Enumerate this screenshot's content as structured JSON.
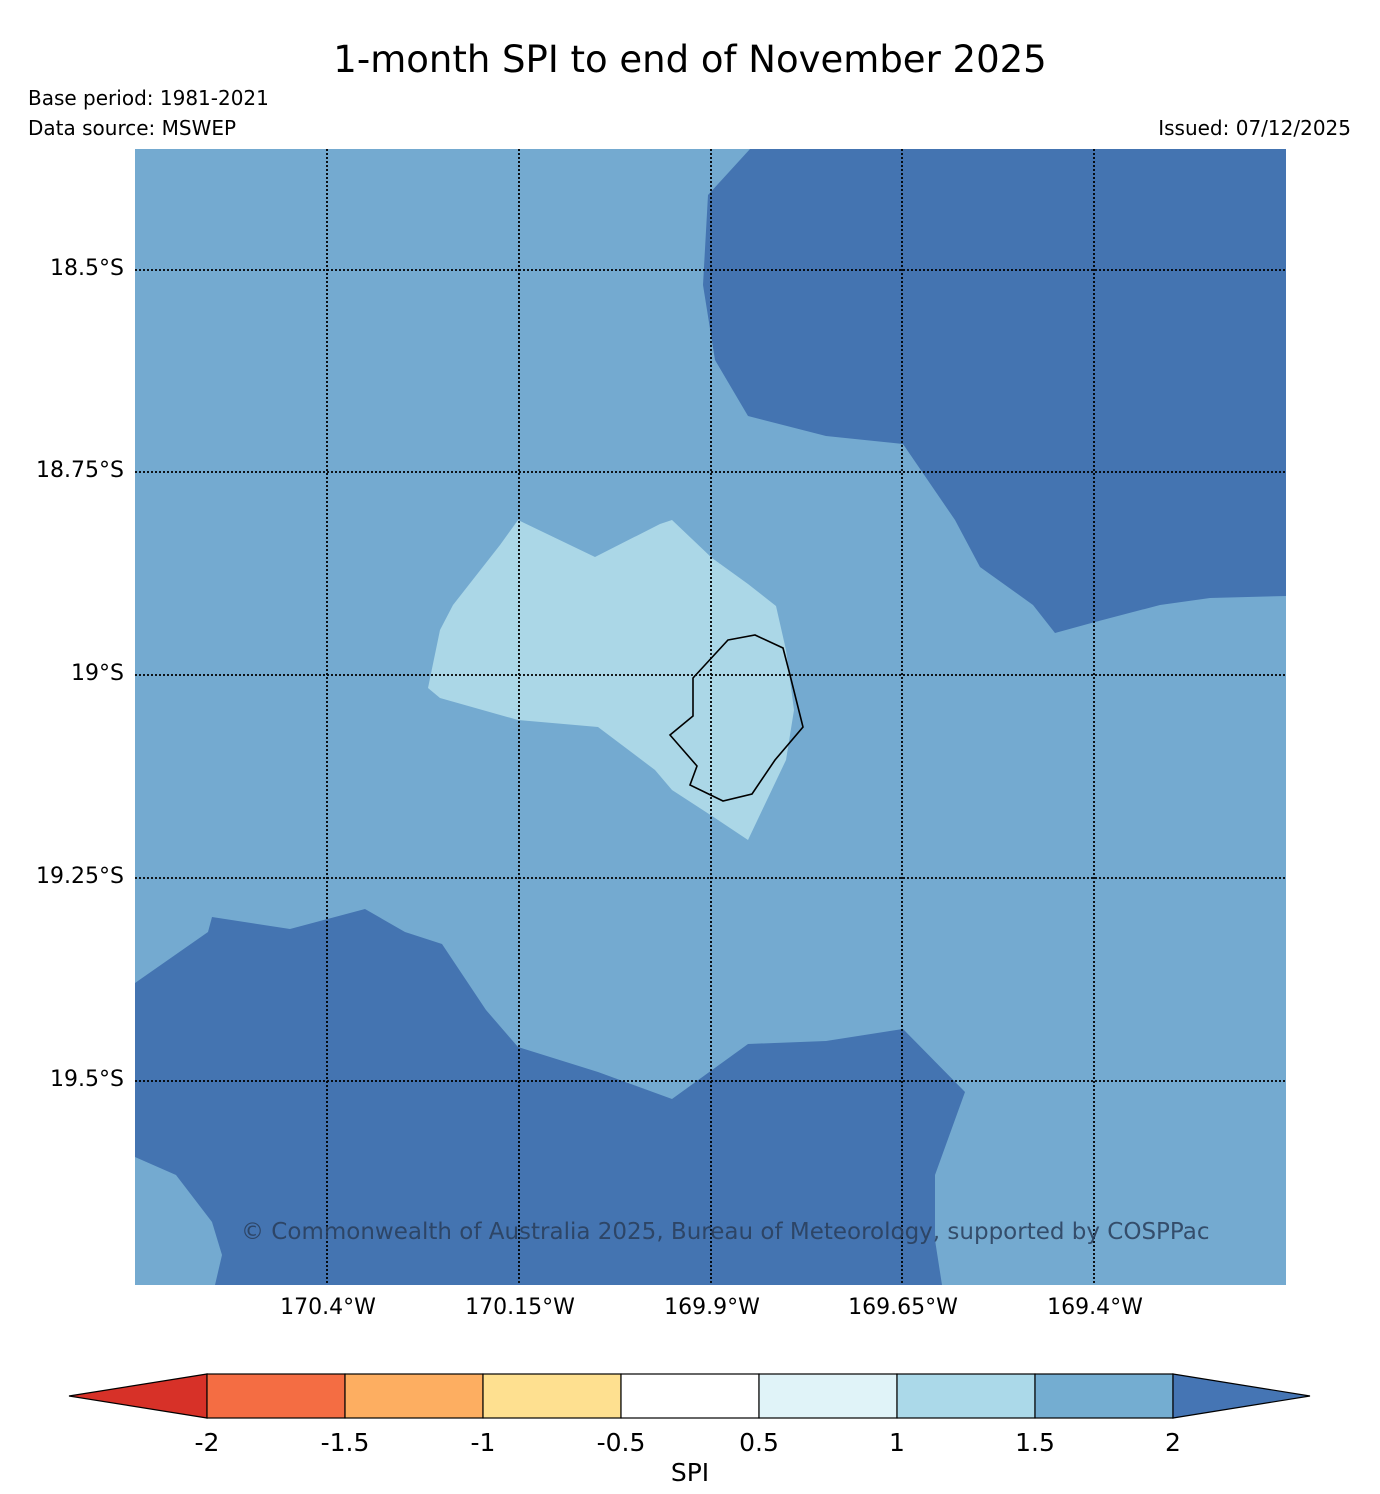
{
  "title": "1-month SPI to end of November 2025",
  "base_period": "Base period: 1981-2021",
  "data_source": "Data source: MSWEP",
  "issued": "Issued: 07/12/2025",
  "copyright": "© Commonwealth of Australia 2025, Bureau of Meteorology, supported by COSPPac",
  "map": {
    "lat_labels": [
      "18.5°S",
      "18.75°S",
      "19°S",
      "19.25°S",
      "19.5°S"
    ],
    "lon_labels": [
      "170.4°W",
      "170.15°W",
      "169.9°W",
      "169.65°W",
      "169.4°W"
    ],
    "colors": {
      "spi_1_to_1_5": "#abd7e7",
      "spi_1_5_to_2": "#74aad0",
      "spi_above_2": "#4474b1"
    }
  },
  "colorbar": {
    "title": "SPI",
    "tick_labels": [
      "-2",
      "-1.5",
      "-1",
      "-0.5",
      "0.5",
      "1",
      "1.5",
      "2"
    ],
    "colors": [
      "#d73128",
      "#f46d43",
      "#fdae61",
      "#fee090",
      "#ffffff",
      "#e0f3f8",
      "#abd9e9",
      "#74add1",
      "#4575b4"
    ]
  }
}
